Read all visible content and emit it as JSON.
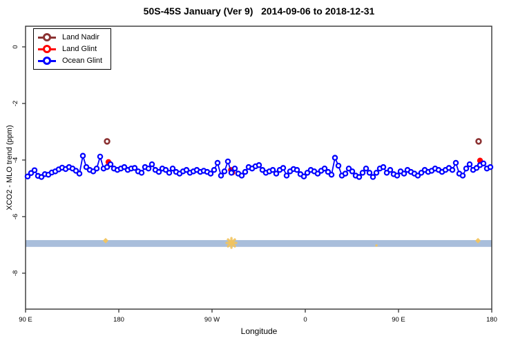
{
  "title": "50S-45S January (Ver 9)   2014-09-06 to 2018-12-31",
  "axes": {
    "x_label": "Longitude",
    "y_label": "XCO2 - MLO trend (ppm)"
  },
  "legend": {
    "items": [
      {
        "label": "Land Nadir",
        "color": "#8B3232"
      },
      {
        "label": "Land Glint",
        "color": "#FF0000"
      },
      {
        "label": "Ocean Glint",
        "color": "#0000FF"
      }
    ]
  },
  "colors": {
    "ocean_glint": "#0000FF",
    "land_glint": "#FF0000",
    "land_nadir": "#8B3232",
    "band": "#A9BEDB",
    "cluster_marker": "#F2C45E",
    "axis": "#333333"
  },
  "chart_data": {
    "type": "line",
    "title": "50S-45S January (Ver 9)   2014-09-06 to 2018-12-31",
    "xlabel": "Longitude",
    "ylabel": "XCO2 - MLO trend (ppm)",
    "x_axis": {
      "note": "longitude wraps eastward from 90E; extended degrees 90..540",
      "lim_ext": [
        90,
        540
      ],
      "ticks": [
        {
          "lon_ext": 90,
          "label": "90 E"
        },
        {
          "lon_ext": 180,
          "label": "180"
        },
        {
          "lon_ext": 270,
          "label": "90 W"
        },
        {
          "lon_ext": 360,
          "label": "0"
        },
        {
          "lon_ext": 450,
          "label": "90 E"
        },
        {
          "lon_ext": 540,
          "label": "180"
        }
      ]
    },
    "y_axis": {
      "lim": [
        -9.27,
        0.73
      ],
      "ticks": [
        0,
        -2,
        -4,
        -6,
        -8
      ]
    },
    "band": {
      "ppm_center": -6.95,
      "ppm_halfwidth": 0.12
    },
    "cluster_markers": [
      {
        "lon_ext": 167.3,
        "ppm": -6.85,
        "shape": "diamond",
        "size": "small"
      },
      {
        "lon_ext": 288.7,
        "ppm": -6.93,
        "shape": "asterisk",
        "size": "large"
      },
      {
        "lon_ext": 428.7,
        "ppm": -7.02,
        "shape": "dot",
        "size": "tiny"
      },
      {
        "lon_ext": 526.7,
        "ppm": -6.85,
        "shape": "diamond",
        "size": "small"
      }
    ],
    "series": [
      {
        "name": "Land Nadir",
        "marker": "open-circle",
        "points": [
          {
            "lon_ext": 168.7,
            "ppm": -3.34
          },
          {
            "lon_ext": 527.3,
            "ppm": -3.34
          }
        ]
      },
      {
        "name": "Land Glint",
        "marker": "filled-circle",
        "points": [
          {
            "lon_ext": 170.0,
            "ppm": -4.07
          },
          {
            "lon_ext": 288.3,
            "ppm": -4.35
          },
          {
            "lon_ext": 289.6,
            "ppm": -4.44
          },
          {
            "lon_ext": 528.7,
            "ppm": -4.02
          }
        ]
      },
      {
        "name": "Ocean Glint",
        "marker": "open-circle-line",
        "start_lon_ext": 92,
        "step_deg": 3.3333,
        "values_ppm": [
          -4.58,
          -4.46,
          -4.36,
          -4.56,
          -4.6,
          -4.5,
          -4.52,
          -4.44,
          -4.4,
          -4.33,
          -4.27,
          -4.32,
          -4.25,
          -4.3,
          -4.38,
          -4.48,
          -3.85,
          -4.25,
          -4.35,
          -4.4,
          -4.3,
          -3.88,
          -4.3,
          -4.25,
          -4.15,
          -4.3,
          -4.35,
          -4.3,
          -4.25,
          -4.35,
          -4.3,
          -4.28,
          -4.4,
          -4.45,
          -4.25,
          -4.3,
          -4.15,
          -4.35,
          -4.42,
          -4.3,
          -4.35,
          -4.45,
          -4.3,
          -4.42,
          -4.48,
          -4.4,
          -4.35,
          -4.45,
          -4.4,
          -4.35,
          -4.42,
          -4.38,
          -4.42,
          -4.48,
          -4.35,
          -4.1,
          -4.55,
          -4.4,
          -4.05,
          -4.45,
          -4.3,
          -4.48,
          -4.55,
          -4.42,
          -4.25,
          -4.3,
          -4.22,
          -4.18,
          -4.35,
          -4.45,
          -4.4,
          -4.35,
          -4.48,
          -4.35,
          -4.28,
          -4.55,
          -4.4,
          -4.32,
          -4.35,
          -4.5,
          -4.58,
          -4.45,
          -4.35,
          -4.4,
          -4.48,
          -4.38,
          -4.3,
          -4.42,
          -4.52,
          -3.92,
          -4.2,
          -4.55,
          -4.48,
          -4.3,
          -4.4,
          -4.55,
          -4.6,
          -4.45,
          -4.3,
          -4.45,
          -4.6,
          -4.45,
          -4.3,
          -4.25,
          -4.45,
          -4.35,
          -4.5,
          -4.55,
          -4.4,
          -4.48,
          -4.35,
          -4.42,
          -4.48,
          -4.55,
          -4.45,
          -4.35,
          -4.42,
          -4.38,
          -4.3,
          -4.35,
          -4.42,
          -4.35,
          -4.28,
          -4.35,
          -4.1,
          -4.48,
          -4.55,
          -4.3,
          -4.15,
          -4.35,
          -4.28,
          -4.18,
          -4.12,
          -4.3,
          -4.25
        ]
      }
    ]
  }
}
